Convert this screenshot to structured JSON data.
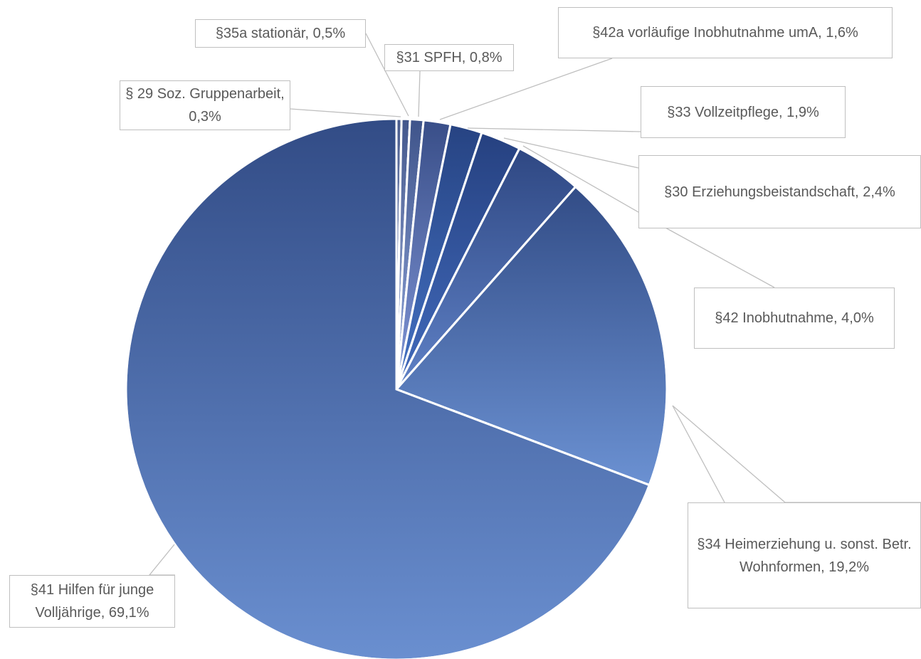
{
  "chart_data": {
    "type": "pie",
    "categories": [
      "§ 29 Soz. Gruppenarbeit,",
      "§35a stationär,",
      "§31 SPFH,",
      "§42a vorläufige Inobhutnahme umA,",
      "§33 Vollzeitpflege,",
      "§30 Erziehungsbeistandschaft,",
      "§42 Inobhutnahme,",
      "§34 Heimerziehung u. sonst. Betr. Wohnformen,",
      "§41 Hilfen für junge Volljährige,"
    ],
    "values": [
      0.3,
      0.5,
      0.8,
      1.6,
      1.9,
      2.4,
      4.0,
      19.2,
      69.1
    ],
    "value_labels": [
      "0,3%",
      "0,5%",
      "0,8%",
      "1,6%",
      "1,9%",
      "2,4%",
      "4,0%",
      "19,2%",
      "69,1%"
    ],
    "colors": [
      "#b3c1e6",
      "#a3b5e3",
      "#93a9de",
      "#8197d8",
      "#4472c4",
      "#426bbd",
      "#5f81c6",
      "#6b91d2",
      "#6a8fd0"
    ]
  }
}
